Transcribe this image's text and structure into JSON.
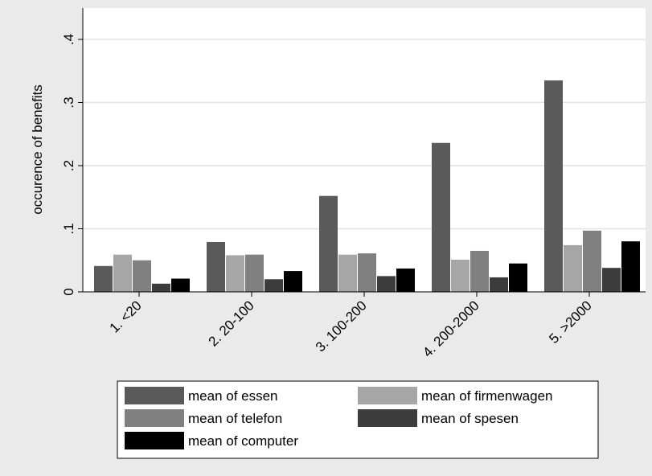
{
  "chart_data": {
    "type": "bar",
    "ylabel": "occurence of benefits",
    "xlabel": "",
    "ylim": [
      0,
      0.4
    ],
    "yticks": [
      {
        "value": 0,
        "label": "0"
      },
      {
        "value": 0.1,
        "label": ".1"
      },
      {
        "value": 0.2,
        "label": ".2"
      },
      {
        "value": 0.3,
        "label": ".3"
      },
      {
        "value": 0.4,
        "label": ".4"
      }
    ],
    "grid": true,
    "categories": [
      "1. <20",
      "2. 20-100",
      "3. 100-200",
      "4. 200-2000",
      "5. >2000"
    ],
    "series": [
      {
        "name": "mean of essen",
        "color": "#5a5a5a",
        "values": [
          0.041,
          0.079,
          0.152,
          0.236,
          0.335
        ]
      },
      {
        "name": "mean of firmenwagen",
        "color": "#a6a6a6",
        "values": [
          0.059,
          0.058,
          0.059,
          0.051,
          0.074
        ]
      },
      {
        "name": "mean of telefon",
        "color": "#808080",
        "values": [
          0.05,
          0.059,
          0.061,
          0.065,
          0.097
        ]
      },
      {
        "name": "mean of spesen",
        "color": "#3c3c3c",
        "values": [
          0.013,
          0.02,
          0.025,
          0.023,
          0.038
        ]
      },
      {
        "name": "mean of computer",
        "color": "#000000",
        "values": [
          0.021,
          0.033,
          0.037,
          0.045,
          0.08
        ]
      }
    ],
    "legend_position": "bottom",
    "colors": {
      "outer_background": "#eaeaea",
      "plot_background": "#ffffff",
      "grid": "#e3e3e3"
    }
  }
}
